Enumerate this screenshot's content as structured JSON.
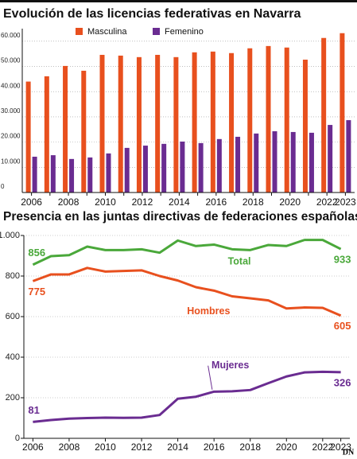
{
  "chart_data": [
    {
      "type": "bar",
      "title": "Evolución de las licencias federativas en Navarra",
      "categories": [
        "2006",
        null,
        "2008",
        null,
        "2010",
        null,
        "2012",
        null,
        "2014",
        null,
        "2016",
        null,
        "2018",
        null,
        "2020",
        null,
        "2022",
        "2023"
      ],
      "series": [
        {
          "name": "Masculina",
          "color": "#e8501e",
          "values": [
            44000,
            46100,
            50200,
            48300,
            54600,
            54300,
            53700,
            54600,
            53700,
            55600,
            55900,
            55300,
            57200,
            58100,
            57500,
            52700,
            61300,
            63200
          ]
        },
        {
          "name": "Femenino",
          "color": "#6a2c91",
          "values": [
            14200,
            14800,
            13300,
            13900,
            15500,
            17700,
            18600,
            19300,
            20200,
            19600,
            21200,
            22100,
            23400,
            24300,
            24000,
            23700,
            26800,
            28700
          ]
        }
      ],
      "ylim": [
        0,
        65000
      ],
      "yticks": [
        0,
        {
          "value": 10000,
          "label": "10.000"
        },
        {
          "value": 20000,
          "label": "20.000"
        },
        {
          "value": 30000,
          "label": "30.000"
        },
        {
          "value": 40000,
          "label": "40.000"
        },
        {
          "value": 50000,
          "label": "50.000"
        },
        {
          "value": 60000,
          "label": "60.000"
        }
      ],
      "grid": true
    },
    {
      "type": "line",
      "title": "Presencia en las juntas directivas de federaciones españolas",
      "x": [
        2006,
        2007,
        2008,
        2009,
        2010,
        2011,
        2012,
        2013,
        2014,
        2015,
        2016,
        2017,
        2018,
        2019,
        2020,
        2021,
        2022,
        2023
      ],
      "series": [
        {
          "name": "Total",
          "color": "#4aa83a",
          "values": [
            856,
            898,
            903,
            945,
            928,
            928,
            932,
            915,
            975,
            948,
            955,
            932,
            928,
            953,
            948,
            978,
            978,
            933
          ]
        },
        {
          "name": "Hombres",
          "color": "#e8501e",
          "values": [
            775,
            808,
            808,
            840,
            822,
            825,
            828,
            800,
            778,
            745,
            728,
            700,
            690,
            680,
            640,
            645,
            643,
            605
          ]
        },
        {
          "name": "Mujeres",
          "color": "#6a2c91",
          "values": [
            81,
            90,
            97,
            100,
            102,
            101,
            102,
            115,
            195,
            205,
            230,
            232,
            238,
            272,
            305,
            325,
            328,
            326
          ]
        }
      ],
      "xlim": [
        2005.5,
        2023.5
      ],
      "xticks": [
        2006,
        2008,
        2010,
        2012,
        2014,
        2016,
        2018,
        2020,
        2022,
        2023
      ],
      "ylim": [
        0,
        1000
      ],
      "yticks": [
        0,
        200,
        400,
        600,
        800,
        {
          "value": 1000,
          "label": "1.000"
        }
      ],
      "grid": true
    }
  ],
  "logo": "DN"
}
